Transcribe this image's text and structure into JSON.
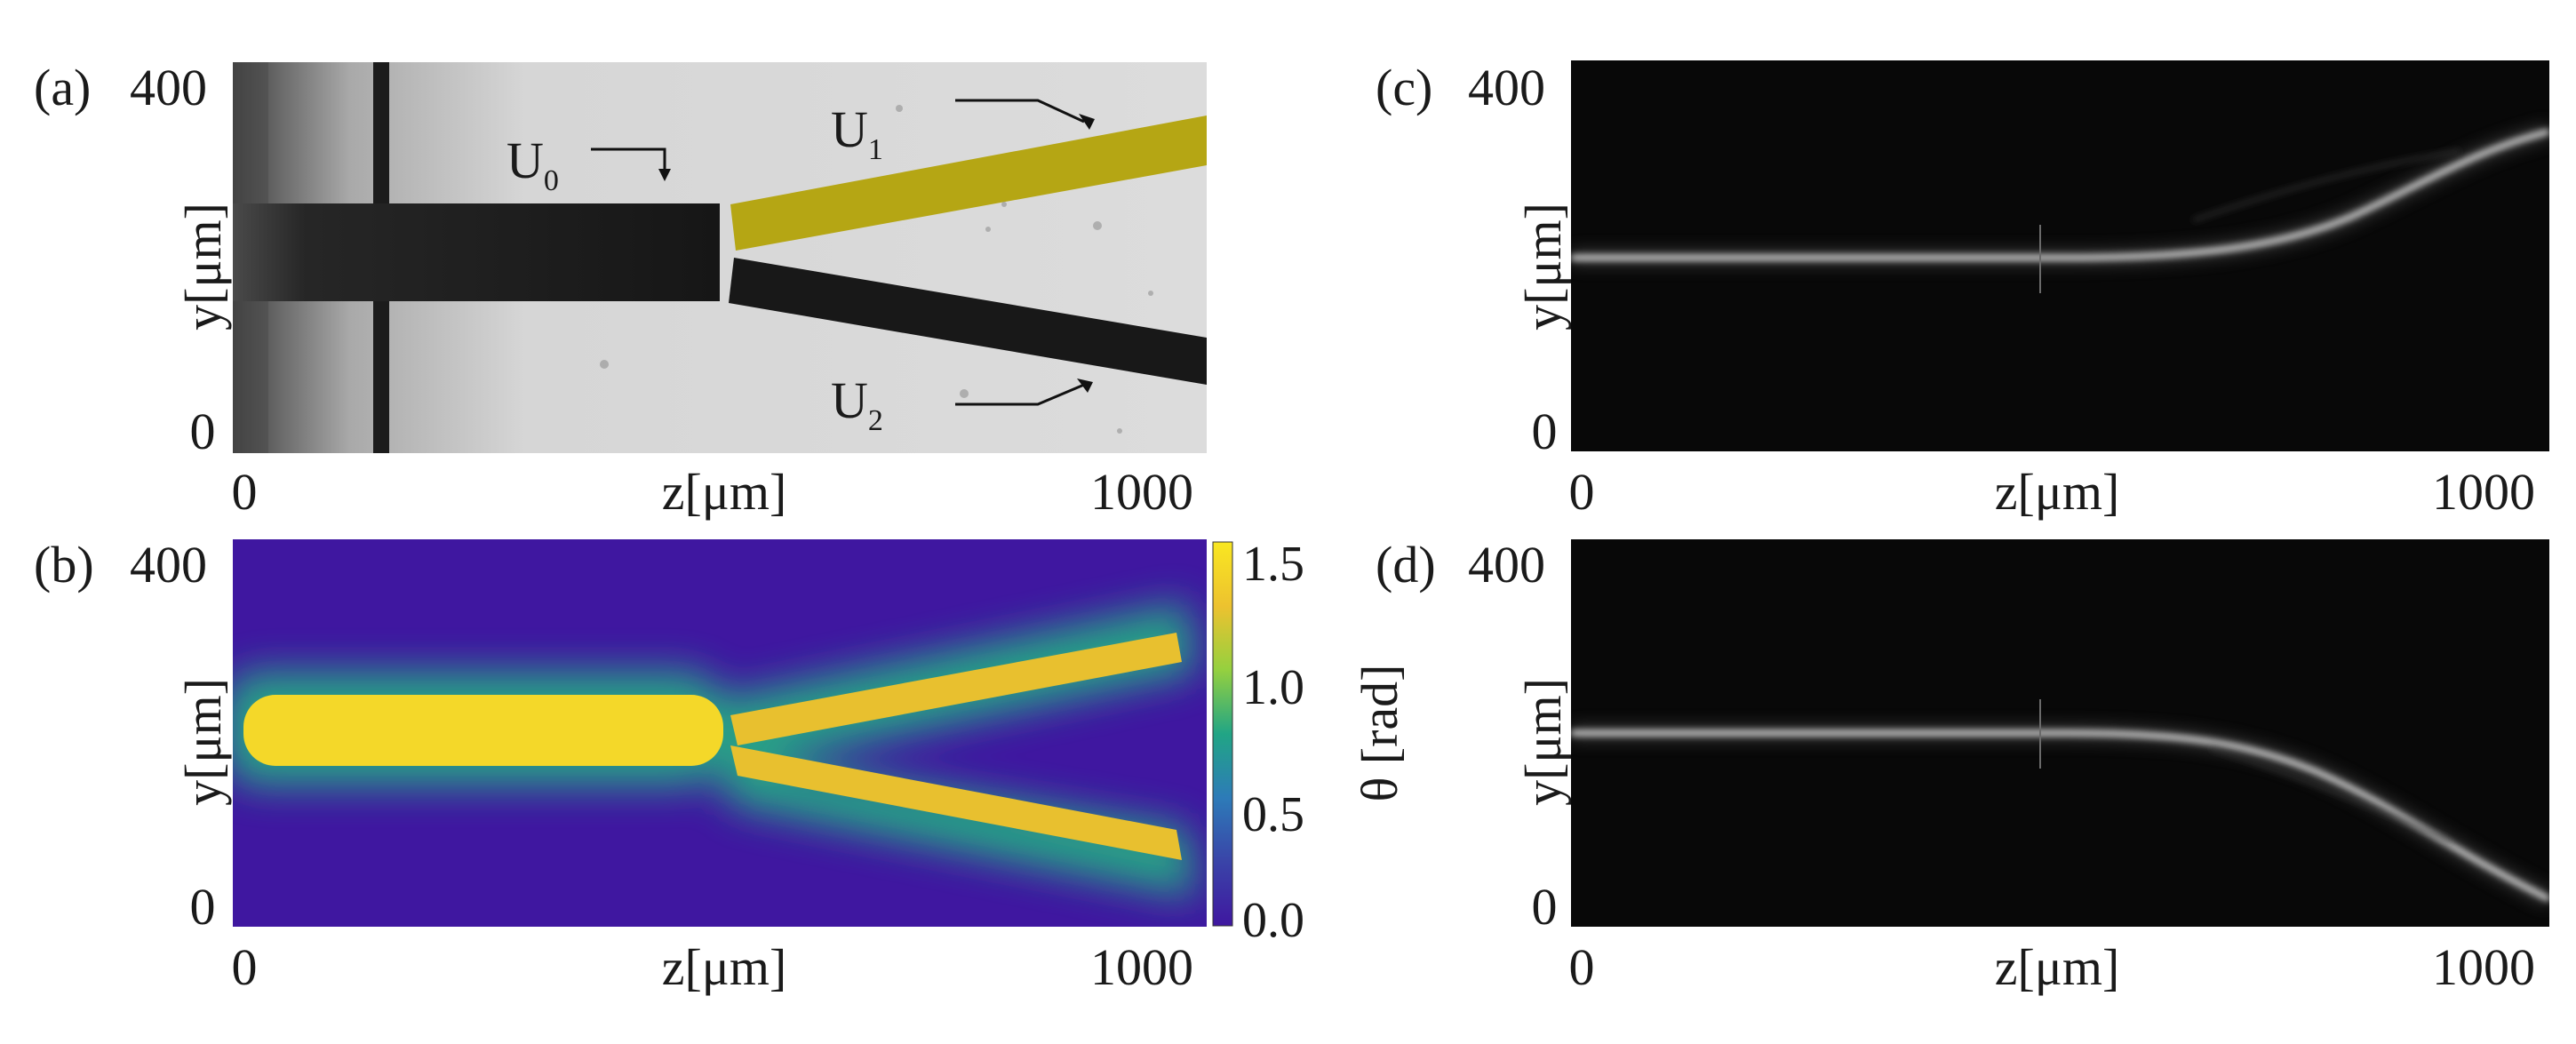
{
  "panels": {
    "a": {
      "label": "(a)",
      "ylabel": "y[μm]",
      "xlabel": "z[μm]",
      "xticks": [
        "0",
        "1000"
      ],
      "yticks": [
        "400",
        "0"
      ],
      "annotations": [
        {
          "main": "U",
          "sub": "0"
        },
        {
          "main": "U",
          "sub": "1"
        },
        {
          "main": "U",
          "sub": "2"
        }
      ],
      "highlight_color": "#b5a614"
    },
    "b": {
      "label": "(b)",
      "ylabel": "y[μm]",
      "xlabel": "z[μm]",
      "xticks": [
        "0",
        "1000"
      ],
      "yticks": [
        "400",
        "0"
      ],
      "colorbar": {
        "label": "θ [rad]",
        "ticks": [
          "1.5",
          "1.0",
          "0.5",
          "0.0"
        ],
        "colors": [
          "#f9e721",
          "#edc22f",
          "#95d03f",
          "#21a585",
          "#2d7bb8",
          "#3a44a8",
          "#3f17a0"
        ]
      }
    },
    "c": {
      "label": "(c)",
      "ylabel": "y[μm]",
      "xlabel": "z[μm]",
      "xticks": [
        "0",
        "1000"
      ],
      "yticks": [
        "400",
        "0"
      ]
    },
    "d": {
      "label": "(d)",
      "ylabel": "y[μm]",
      "xlabel": "z[μm]",
      "xticks": [
        "0",
        "1000"
      ],
      "yticks": [
        "400",
        "0"
      ]
    }
  }
}
